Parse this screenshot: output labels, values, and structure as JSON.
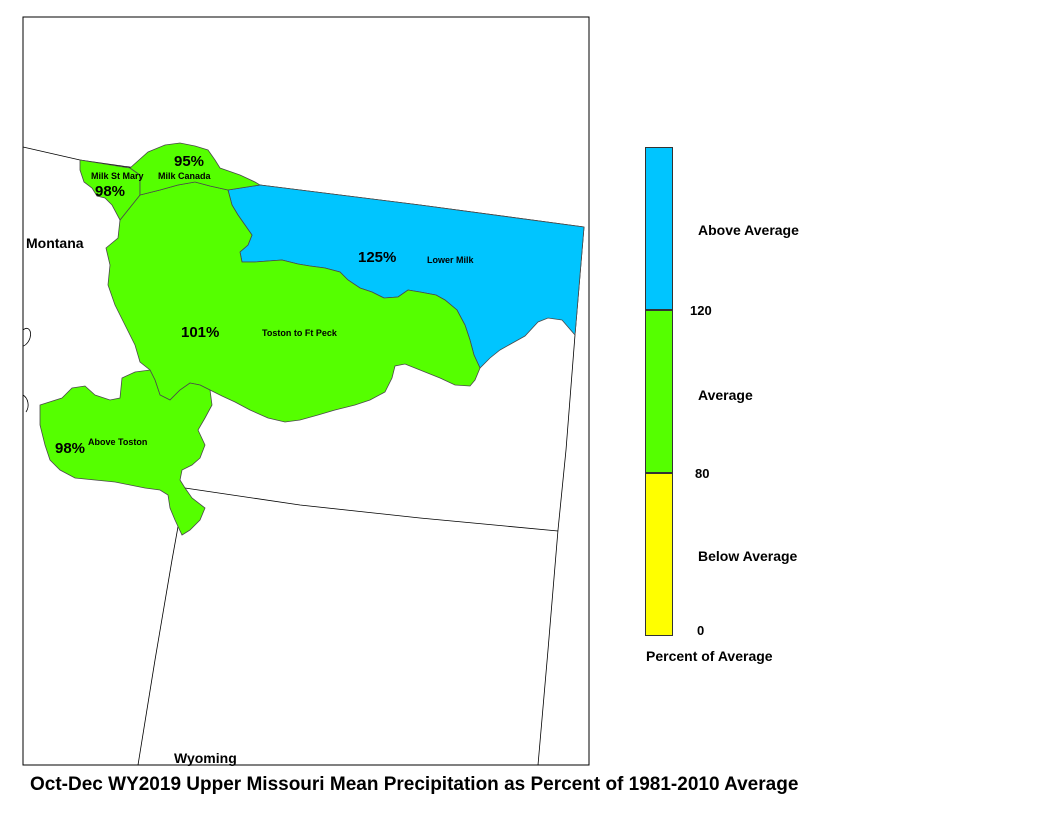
{
  "title": "Oct-Dec WY2019 Upper Missouri Mean Precipitation as Percent of 1981-2010 Average",
  "states": {
    "montana": "Montana",
    "wyoming": "Wyoming"
  },
  "basins": [
    {
      "name": "Milk St Mary",
      "percent": "98%",
      "category": "Average",
      "color": "#55ff00"
    },
    {
      "name": "Milk Canada",
      "percent": "95%",
      "category": "Average",
      "color": "#55ff00"
    },
    {
      "name": "Lower Milk",
      "percent": "125%",
      "category": "Above Average",
      "color": "#00c5ff"
    },
    {
      "name": "Toston to Ft Peck",
      "percent": "101%",
      "category": "Average",
      "color": "#55ff00"
    },
    {
      "name": "Above Toston",
      "percent": "98%",
      "category": "Average",
      "color": "#55ff00"
    }
  ],
  "legend": {
    "title": "Percent of Average",
    "categories": [
      {
        "label": "Above Average",
        "color": "#00c5ff"
      },
      {
        "label": "Average",
        "color": "#55ff00"
      },
      {
        "label": "Below Average",
        "color": "#ffff00"
      }
    ],
    "ticks": [
      "120",
      "80",
      "0"
    ]
  }
}
